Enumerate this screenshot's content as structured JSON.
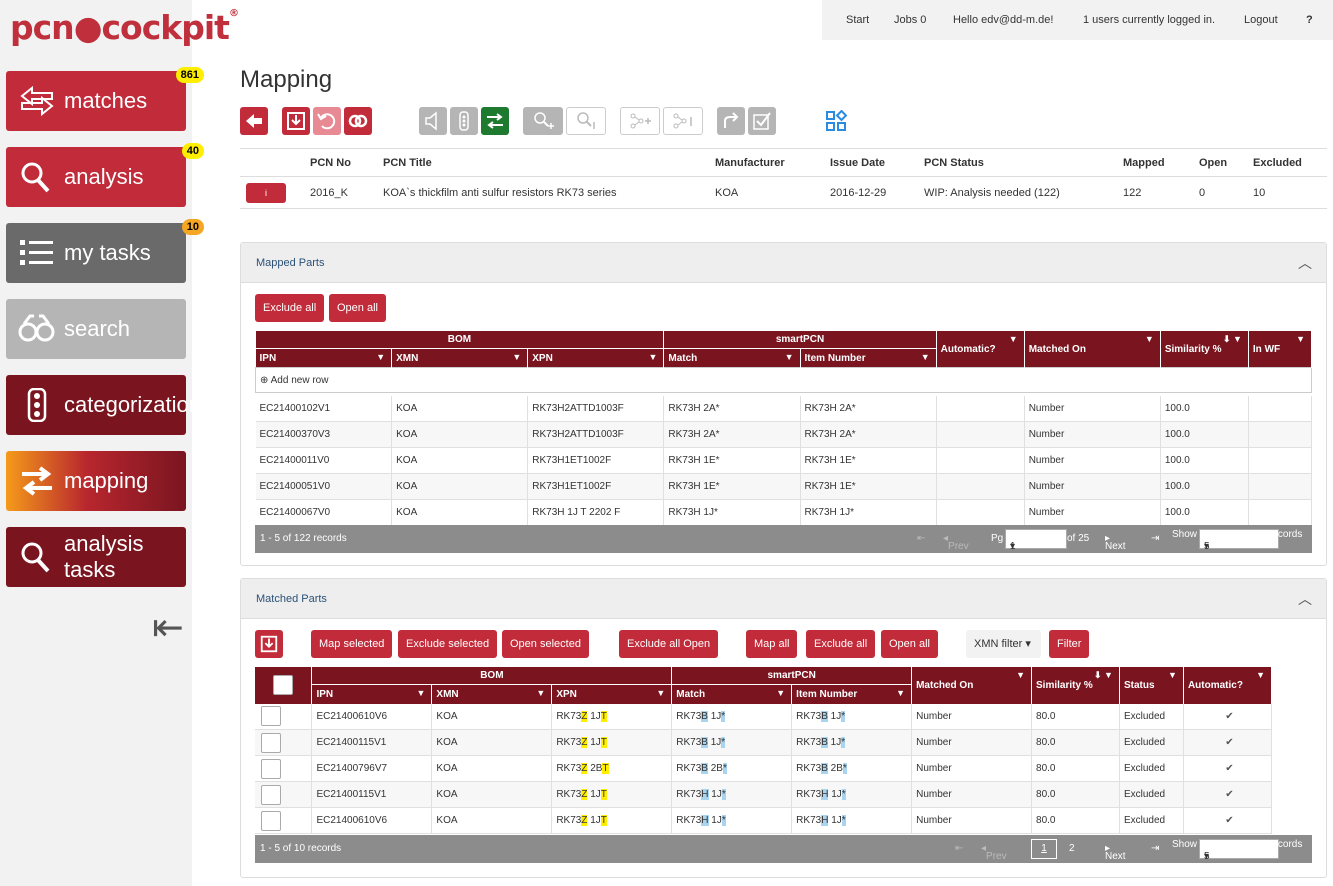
{
  "logo": {
    "text": "pcn",
    "text2": "cockpit",
    "reg": "®"
  },
  "nav": [
    {
      "label": "matches",
      "badge": "861",
      "color": "#c22b3a"
    },
    {
      "label": "analysis",
      "badge": "40",
      "color": "#c22b3a"
    },
    {
      "label": "my tasks",
      "badge": "10",
      "color": "#6a6a6a"
    },
    {
      "label": "search",
      "badge": "",
      "color": "#b5b5b5"
    },
    {
      "label": "categorization",
      "badge": "",
      "color": "#7a1520"
    },
    {
      "label": "mapping",
      "badge": "",
      "color": "#7a1520"
    },
    {
      "label": "analysis tasks",
      "badge": "",
      "color": "#7a1520"
    }
  ],
  "topbar": {
    "start": "Start",
    "jobs": "Jobs 0",
    "hello": "Hello edv@dd-m.de!",
    "users": "1 users currently logged in.",
    "logout": "Logout",
    "help": "?"
  },
  "page_title": "Mapping",
  "pcn": {
    "headers": [
      "PCN No",
      "PCN Title",
      "Manufacturer",
      "Issue Date",
      "PCN Status",
      "Mapped",
      "Open",
      "Excluded"
    ],
    "icon_text": "i",
    "row": {
      "no": "2016_K",
      "title": "KOA`s thickfilm anti sulfur resistors RK73 series",
      "manufacturer": "KOA",
      "date": "2016-12-29",
      "status": "WIP: Analysis needed (122)",
      "mapped": "122",
      "open": "0",
      "excluded": "10"
    }
  },
  "mapped": {
    "title": "Mapped Parts",
    "btn_exclude_all": "Exclude all",
    "btn_open_all": "Open all",
    "group_bom": "BOM",
    "group_smart": "smartPCN",
    "cols": [
      "IPN",
      "XMN",
      "XPN",
      "Match",
      "Item Number",
      "Automatic?",
      "Matched On",
      "Similarity %",
      "In WF"
    ],
    "add_row": "Add new row",
    "rows": [
      [
        "EC21400102V1",
        "KOA",
        "RK73H2ATTD1003F",
        "RK73H 2A*",
        "RK73H 2A*",
        "",
        "Number",
        "100.0",
        ""
      ],
      [
        "EC21400370V3",
        "KOA",
        "RK73H2ATTD1003F",
        "RK73H 2A*",
        "RK73H 2A*",
        "",
        "Number",
        "100.0",
        ""
      ],
      [
        "EC21400011V0",
        "KOA",
        "RK73H1ET1002F",
        "RK73H 1E*",
        "RK73H 1E*",
        "",
        "Number",
        "100.0",
        ""
      ],
      [
        "EC21400051V0",
        "KOA",
        "RK73H1ET1002F",
        "RK73H 1E*",
        "RK73H 1E*",
        "",
        "Number",
        "100.0",
        ""
      ],
      [
        "EC21400067V0",
        "KOA",
        "RK73H 1J T 2202 F",
        "RK73H 1J*",
        "RK73H 1J*",
        "",
        "Number",
        "100.0",
        ""
      ]
    ],
    "footer": {
      "records": "1 - 5 of 122 records",
      "prev": "Prev",
      "pg": "Pg",
      "page": "1",
      "of": "of 25",
      "next": "Next",
      "show": "Show",
      "show_val": "5",
      "records_label": "records"
    }
  },
  "matched": {
    "title": "Matched Parts",
    "buttons": [
      "Map selected",
      "Exclude selected",
      "Open selected",
      "Exclude all Open",
      "Map all",
      "Exclude all",
      "Open all"
    ],
    "xmn_filter": "XMN filter",
    "filter": "Filter",
    "group_bom": "BOM",
    "group_smart": "smartPCN",
    "cols": [
      "IPN",
      "XMN",
      "XPN",
      "Match",
      "Item Number",
      "Matched On",
      "Similarity %",
      "Status",
      "Automatic?"
    ],
    "rows": [
      {
        "ipn": "EC21400610V6",
        "xmn": "KOA",
        "xpn": [
          "RK73",
          "Z",
          " 1J",
          "T",
          ""
        ],
        "match": [
          "RK73",
          "B",
          " 1J",
          "*"
        ],
        "item": [
          "RK73",
          "B",
          " 1J",
          "*"
        ],
        "on": "Number",
        "sim": "80.0",
        "status": "Excluded",
        "auto": "✔"
      },
      {
        "ipn": "EC21400115V1",
        "xmn": "KOA",
        "xpn": [
          "RK73",
          "Z",
          " 1J",
          "T",
          ""
        ],
        "match": [
          "RK73",
          "B",
          " 1J",
          "*"
        ],
        "item": [
          "RK73",
          "B",
          " 1J",
          "*"
        ],
        "on": "Number",
        "sim": "80.0",
        "status": "Excluded",
        "auto": "✔"
      },
      {
        "ipn": "EC21400796V7",
        "xmn": "KOA",
        "xpn": [
          "RK73",
          "Z",
          " 2B",
          "T",
          ""
        ],
        "match": [
          "RK73",
          "B",
          " 2B",
          "*"
        ],
        "item": [
          "RK73",
          "B",
          " 2B",
          "*"
        ],
        "on": "Number",
        "sim": "80.0",
        "status": "Excluded",
        "auto": "✔"
      },
      {
        "ipn": "EC21400115V1",
        "xmn": "KOA",
        "xpn": [
          "RK73",
          "Z",
          " 1J",
          "T",
          ""
        ],
        "match": [
          "RK73",
          "H",
          " 1J",
          "*"
        ],
        "item": [
          "RK73",
          "H",
          " 1J",
          "*"
        ],
        "on": "Number",
        "sim": "80.0",
        "status": "Excluded",
        "auto": "✔"
      },
      {
        "ipn": "EC21400610V6",
        "xmn": "KOA",
        "xpn": [
          "RK73",
          "Z",
          " 1J",
          "T",
          ""
        ],
        "match": [
          "RK73",
          "H",
          " 1J",
          "*"
        ],
        "item": [
          "RK73",
          "H",
          " 1J",
          "*"
        ],
        "on": "Number",
        "sim": "80.0",
        "status": "Excluded",
        "auto": "✔"
      }
    ],
    "footer": {
      "records": "1 - 5 of 10 records",
      "prev": "Prev",
      "page1": "1",
      "page2": "2",
      "next": "Next",
      "show": "Show",
      "show_val": "5",
      "records_label": "records"
    }
  }
}
